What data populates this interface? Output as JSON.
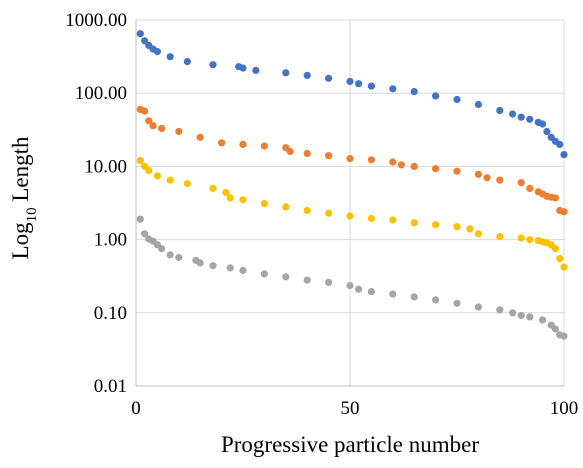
{
  "chart_data": {
    "type": "scatter",
    "title": "",
    "xlabel": "Progressive particle number",
    "ylabel_main": "Log",
    "ylabel_sub": "10",
    "ylabel_rest": " Length",
    "xlim": [
      0,
      100
    ],
    "ylim": [
      0.01,
      1000
    ],
    "y_scale": "log",
    "grid": true,
    "legend": "none",
    "x_ticks": [
      {
        "value": 0,
        "label": "0"
      },
      {
        "value": 50,
        "label": "50"
      },
      {
        "value": 100,
        "label": "100"
      }
    ],
    "y_ticks": [
      {
        "value": 0.01,
        "label": "0.01"
      },
      {
        "value": 0.1,
        "label": "0.10"
      },
      {
        "value": 1,
        "label": "1.00"
      },
      {
        "value": 10,
        "label": "10.00"
      },
      {
        "value": 100,
        "label": "100.00"
      },
      {
        "value": 1000,
        "label": "1000.00"
      }
    ],
    "series": [
      {
        "color": "#4472c4",
        "x": [
          1,
          2,
          3,
          4,
          5,
          8,
          12,
          18,
          24,
          25,
          28,
          35,
          40,
          45,
          50,
          52,
          55,
          60,
          65,
          70,
          75,
          80,
          85,
          88,
          90,
          92,
          94,
          95,
          96,
          97,
          98,
          99,
          100
        ],
        "y": [
          650,
          520,
          450,
          400,
          370,
          315,
          270,
          245,
          230,
          220,
          205,
          190,
          175,
          160,
          145,
          135,
          125,
          115,
          105,
          92,
          82,
          70,
          58,
          52,
          47,
          44,
          40,
          38,
          30,
          25,
          22,
          20,
          14.5
        ]
      },
      {
        "color": "#ed7d31",
        "x": [
          1,
          2,
          3,
          4,
          6,
          10,
          15,
          20,
          25,
          30,
          35,
          36,
          40,
          45,
          50,
          55,
          60,
          62,
          65,
          70,
          75,
          80,
          82,
          85,
          90,
          92,
          94,
          95,
          96,
          97,
          98,
          99,
          100
        ],
        "y": [
          60,
          57,
          42,
          36,
          33,
          30,
          25,
          21,
          20,
          19,
          18,
          16,
          15,
          14,
          12.8,
          12.3,
          11.5,
          10.5,
          10,
          9.3,
          8.6,
          7.8,
          7,
          6.5,
          6,
          5,
          4.5,
          4.2,
          3.9,
          3.8,
          3.7,
          2.5,
          2.4
        ]
      },
      {
        "color": "#ffc000",
        "x": [
          1,
          2,
          3,
          5,
          8,
          12,
          18,
          21,
          22,
          25,
          30,
          35,
          40,
          45,
          50,
          55,
          60,
          65,
          70,
          75,
          78,
          80,
          85,
          90,
          92,
          94,
          95,
          96,
          97,
          98,
          99,
          100
        ],
        "y": [
          12,
          10,
          8.8,
          7.4,
          6.5,
          5.8,
          5,
          4.4,
          3.7,
          3.5,
          3.1,
          2.8,
          2.5,
          2.3,
          2.1,
          1.95,
          1.85,
          1.7,
          1.6,
          1.5,
          1.4,
          1.2,
          1.1,
          1.05,
          1.0,
          0.97,
          0.93,
          0.9,
          0.85,
          0.75,
          0.55,
          0.42
        ]
      },
      {
        "color": "#a5a5a5",
        "x": [
          1,
          2,
          3,
          4,
          5,
          6,
          8,
          10,
          14,
          15,
          18,
          22,
          25,
          30,
          35,
          40,
          45,
          50,
          52,
          55,
          60,
          65,
          70,
          75,
          80,
          85,
          88,
          90,
          92,
          95,
          97,
          98,
          99,
          100
        ],
        "y": [
          1.9,
          1.2,
          1.02,
          0.95,
          0.85,
          0.75,
          0.62,
          0.57,
          0.52,
          0.48,
          0.44,
          0.41,
          0.38,
          0.34,
          0.31,
          0.28,
          0.26,
          0.235,
          0.21,
          0.195,
          0.18,
          0.165,
          0.15,
          0.135,
          0.12,
          0.11,
          0.1,
          0.092,
          0.088,
          0.08,
          0.068,
          0.06,
          0.05,
          0.048
        ]
      }
    ]
  }
}
